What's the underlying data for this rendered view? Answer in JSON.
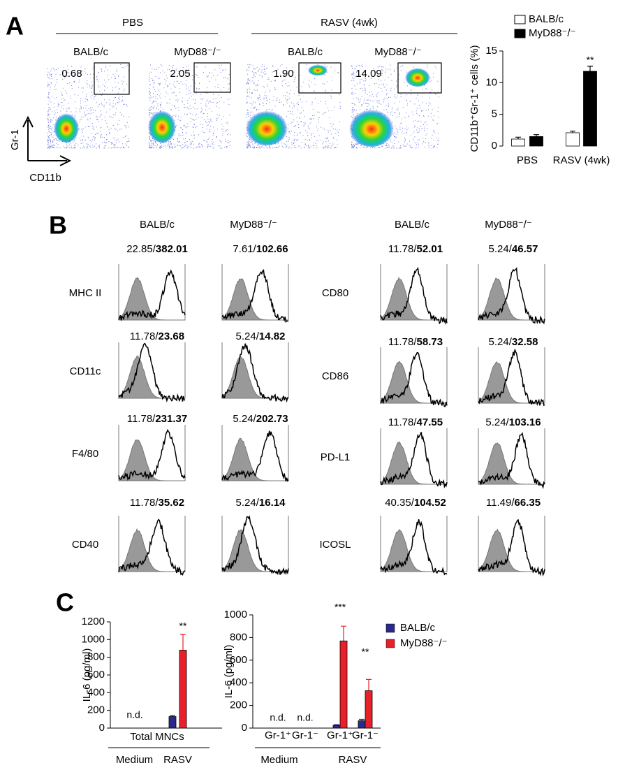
{
  "panel_a": {
    "letter": "A",
    "groups": [
      "PBS",
      "RASV (4wk)"
    ],
    "columns": [
      "BALB/c",
      "MyD88⁻/⁻",
      "BALB/c",
      "MyD88⁻/⁻"
    ],
    "gate_percentages": [
      "0.68",
      "2.05",
      "1.90",
      "14.09"
    ],
    "y_axis": "Gr-1",
    "x_axis": "CD11b"
  },
  "panel_b": {
    "letter": "B",
    "columns": [
      "BALB/c",
      "MyD88⁻/⁻",
      "BALB/c",
      "MyD88⁻/⁻"
    ],
    "left_rows": [
      {
        "marker": "MHC II",
        "stats": [
          {
            "iso": "22.85/",
            "mfi": "382.01"
          },
          {
            "iso": "7.61/",
            "mfi": "102.66"
          }
        ]
      },
      {
        "marker": "CD11c",
        "stats": [
          {
            "iso": "11.78/",
            "mfi": "23.68"
          },
          {
            "iso": "5.24/",
            "mfi": "14.82"
          }
        ]
      },
      {
        "marker": "F4/80",
        "stats": [
          {
            "iso": "11.78/",
            "mfi": "231.37"
          },
          {
            "iso": "5.24/",
            "mfi": "202.73"
          }
        ]
      },
      {
        "marker": "CD40",
        "stats": [
          {
            "iso": "11.78/",
            "mfi": "35.62"
          },
          {
            "iso": "5.24/",
            "mfi": "16.14"
          }
        ]
      }
    ],
    "right_rows": [
      {
        "marker": "CD80",
        "stats": [
          {
            "iso": "11.78/",
            "mfi": "52.01"
          },
          {
            "iso": "5.24/",
            "mfi": "46.57"
          }
        ]
      },
      {
        "marker": "CD86",
        "stats": [
          {
            "iso": "11.78/",
            "mfi": "58.73"
          },
          {
            "iso": "5.24/",
            "mfi": "32.58"
          }
        ]
      },
      {
        "marker": "PD-L1",
        "stats": [
          {
            "iso": "11.78/",
            "mfi": "47.55"
          },
          {
            "iso": "5.24/",
            "mfi": "103.16"
          }
        ]
      },
      {
        "marker": "ICOSL",
        "stats": [
          {
            "iso": "40.35/",
            "mfi": "104.52"
          },
          {
            "iso": "11.49/",
            "mfi": "66.35"
          }
        ]
      }
    ]
  },
  "panel_c": {
    "letter": "C"
  },
  "chart_data": [
    {
      "type": "bar",
      "ylabel": "CD11b⁺Gr-1⁺ cells (%)",
      "categories": [
        "PBS",
        "RASV (4wk)"
      ],
      "series": [
        {
          "name": "BALB/c",
          "color": "#ffffff",
          "values": [
            1.1,
            2.1
          ],
          "errors": [
            0.3,
            0.25
          ]
        },
        {
          "name": "MyD88⁻/⁻",
          "color": "#000000",
          "values": [
            1.5,
            11.8
          ],
          "errors": [
            0.3,
            0.8
          ]
        }
      ],
      "ylim": [
        0,
        15
      ],
      "yticks": [
        0,
        5,
        10,
        15
      ],
      "annotations": [
        "**"
      ]
    },
    {
      "type": "bar",
      "ylabel": "IL-6 (pg/ml)",
      "xlabel": "Total MNCs",
      "categories": [
        "Medium",
        "RASV"
      ],
      "series": [
        {
          "name": "BALB/c",
          "color": "#2a2a8c",
          "values": [
            null,
            130
          ],
          "errors": [
            null,
            12
          ]
        },
        {
          "name": "MyD88⁻/⁻",
          "color": "#e8202a",
          "values": [
            null,
            880
          ],
          "errors": [
            null,
            180
          ]
        }
      ],
      "ylim": [
        0,
        1200
      ],
      "yticks": [
        0,
        200,
        400,
        600,
        800,
        1000,
        1200
      ],
      "annotations": [
        "n.d.",
        "**"
      ]
    },
    {
      "type": "bar",
      "ylabel": "IL-6 (pg/ml)",
      "categories": [
        "Gr-1⁺",
        "Gr-1⁻",
        "Gr-1⁺",
        "Gr-1⁻"
      ],
      "group_labels": [
        "Medium",
        "RASV"
      ],
      "series": [
        {
          "name": "BALB/c",
          "color": "#2a2a8c",
          "values": [
            null,
            null,
            25,
            65
          ],
          "errors": [
            null,
            null,
            5,
            12
          ]
        },
        {
          "name": "MyD88⁻/⁻",
          "color": "#e8202a",
          "values": [
            null,
            null,
            770,
            330
          ],
          "errors": [
            null,
            null,
            130,
            100
          ]
        }
      ],
      "ylim": [
        0,
        1000
      ],
      "yticks": [
        0,
        200,
        400,
        600,
        800,
        1000
      ],
      "annotations": [
        "n.d.",
        "n.d.",
        "***",
        "**"
      ]
    }
  ]
}
